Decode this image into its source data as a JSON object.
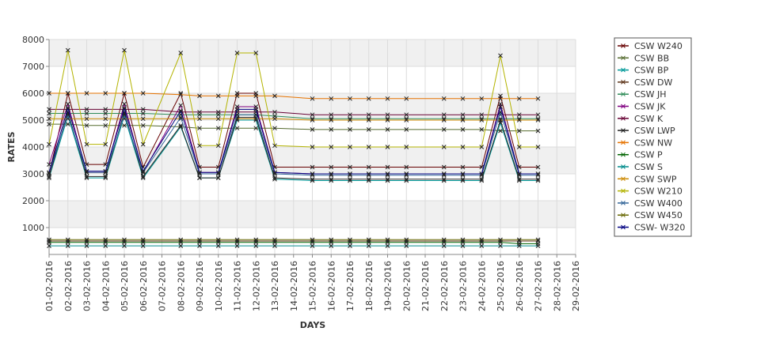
{
  "chart_data": {
    "type": "line",
    "xlabel": "DAYS",
    "ylabel": "RATES",
    "ylim": [
      0,
      8000
    ],
    "yticks": [
      1000,
      2000,
      3000,
      4000,
      5000,
      6000,
      7000,
      8000
    ],
    "grid": "alternating horizontal bands + vertical gridlines",
    "legend_position": "right",
    "categories": [
      "01-02-2016",
      "02-02-2016",
      "03-02-2016",
      "04-02-2016",
      "05-02-2016",
      "06-02-2016",
      "07-02-2016",
      "08-02-2016",
      "09-02-2016",
      "10-02-2016",
      "11-02-2016",
      "12-02-2016",
      "13-02-2016",
      "14-02-2016",
      "15-02-2016",
      "16-02-2016",
      "17-02-2016",
      "18-02-2016",
      "19-02-2016",
      "20-02-2016",
      "21-02-2016",
      "22-02-2016",
      "23-02-2016",
      "24-02-2016",
      "25-02-2016",
      "26-02-2016",
      "27-02-2016",
      "28-02-2016",
      "29-02-2016"
    ],
    "series": [
      {
        "name": "CSW  W240",
        "color": "#660000",
        "values": [
          3000,
          6000,
          3350,
          3350,
          6000,
          3250,
          null,
          6000,
          3250,
          3250,
          6000,
          6000,
          3250,
          null,
          3250,
          3250,
          3250,
          3250,
          3250,
          3250,
          null,
          3250,
          3250,
          3250,
          5900,
          3250,
          3250,
          null,
          null
        ]
      },
      {
        "name": "CSW BB",
        "color": "#556b2f",
        "values": [
          4850,
          4850,
          4800,
          4800,
          4800,
          4800,
          null,
          4750,
          4700,
          4700,
          4700,
          4700,
          4700,
          null,
          4650,
          4650,
          4650,
          4650,
          4650,
          4650,
          null,
          4650,
          4650,
          4650,
          4600,
          4600,
          4600,
          null,
          null
        ]
      },
      {
        "name": "CSW BP",
        "color": "#009999",
        "values": [
          2850,
          5150,
          2850,
          2850,
          5150,
          2850,
          null,
          4750,
          2850,
          2850,
          5000,
          5000,
          2800,
          null,
          2750,
          2750,
          2750,
          2750,
          2750,
          2750,
          null,
          2750,
          2750,
          2750,
          4900,
          2750,
          2750,
          null,
          null
        ]
      },
      {
        "name": "CSW DW",
        "color": "#5c3317",
        "values": [
          500,
          500,
          500,
          500,
          500,
          500,
          null,
          500,
          500,
          500,
          500,
          500,
          500,
          null,
          500,
          500,
          500,
          500,
          500,
          500,
          null,
          500,
          500,
          500,
          500,
          500,
          500,
          null,
          null
        ]
      },
      {
        "name": "CSW JH",
        "color": "#2e8b57",
        "values": [
          5250,
          5250,
          5250,
          5250,
          5250,
          5250,
          null,
          5200,
          5200,
          5200,
          5200,
          5200,
          5150,
          null,
          5050,
          5050,
          5050,
          5050,
          5050,
          5050,
          null,
          5050,
          5050,
          5050,
          5050,
          5050,
          5050,
          null,
          null
        ]
      },
      {
        "name": "CSW JK",
        "color": "#800080",
        "values": [
          3350,
          5600,
          3050,
          3050,
          5600,
          3050,
          null,
          5550,
          3050,
          3050,
          5500,
          5500,
          3050,
          null,
          3000,
          3000,
          3000,
          3000,
          3000,
          3000,
          null,
          3000,
          3000,
          3000,
          5600,
          3000,
          3000,
          null,
          null
        ]
      },
      {
        "name": "CSW K",
        "color": "#660033",
        "values": [
          5400,
          5400,
          5400,
          5400,
          5400,
          5400,
          null,
          5300,
          5300,
          5300,
          5300,
          5300,
          5300,
          null,
          5200,
          5200,
          5200,
          5200,
          5200,
          5200,
          null,
          5200,
          5200,
          5200,
          5200,
          5200,
          5200,
          null,
          null
        ]
      },
      {
        "name": "CSW LWP",
        "color": "#222222",
        "values": [
          2900,
          5300,
          2900,
          2900,
          5300,
          2900,
          null,
          4800,
          2850,
          2850,
          5100,
          5100,
          2850,
          null,
          2800,
          2800,
          2800,
          2800,
          2800,
          2800,
          null,
          2800,
          2800,
          2800,
          5000,
          2800,
          2800,
          null,
          null
        ]
      },
      {
        "name": "CSW NW",
        "color": "#e67300",
        "values": [
          6000,
          6000,
          6000,
          6000,
          6000,
          6000,
          null,
          5950,
          5900,
          5900,
          5900,
          5900,
          5900,
          null,
          5800,
          5800,
          5800,
          5800,
          5800,
          5800,
          null,
          5800,
          5800,
          5800,
          5800,
          5800,
          5800,
          null,
          null
        ]
      },
      {
        "name": "CSW P",
        "color": "#006400",
        "values": [
          450,
          450,
          450,
          450,
          450,
          450,
          null,
          450,
          450,
          450,
          450,
          450,
          450,
          null,
          450,
          450,
          450,
          450,
          450,
          450,
          null,
          450,
          450,
          450,
          450,
          400,
          400,
          null,
          null
        ]
      },
      {
        "name": "CSW S",
        "color": "#008b8b",
        "values": [
          320,
          320,
          320,
          320,
          320,
          320,
          null,
          320,
          320,
          320,
          320,
          320,
          320,
          null,
          320,
          320,
          320,
          320,
          320,
          320,
          null,
          320,
          320,
          320,
          320,
          320,
          320,
          null,
          null
        ]
      },
      {
        "name": "CSW SWP",
        "color": "#cc8800",
        "values": [
          5050,
          5050,
          5050,
          5050,
          5050,
          5050,
          null,
          5050,
          5050,
          5050,
          5050,
          5050,
          5050,
          null,
          5000,
          5000,
          5000,
          5000,
          5000,
          5000,
          null,
          5000,
          5000,
          5000,
          5000,
          5000,
          5000,
          null,
          null
        ]
      },
      {
        "name": "CSW W210",
        "color": "#b3b300",
        "values": [
          4100,
          7600,
          4100,
          4100,
          7600,
          4100,
          null,
          7500,
          4050,
          4050,
          7500,
          7500,
          4050,
          null,
          4000,
          4000,
          4000,
          4000,
          4000,
          4000,
          null,
          4000,
          4000,
          4000,
          7400,
          4000,
          4000,
          null,
          null
        ]
      },
      {
        "name": "CSW W400",
        "color": "#336699",
        "values": [
          3050,
          5200,
          3050,
          3050,
          5200,
          3050,
          null,
          5100,
          3000,
          3000,
          5200,
          5200,
          3000,
          null,
          2950,
          2950,
          2950,
          2950,
          2950,
          2950,
          null,
          2950,
          2950,
          2950,
          5300,
          2950,
          2950,
          null,
          null
        ]
      },
      {
        "name": "CSW W450",
        "color": "#666600",
        "values": [
          550,
          550,
          550,
          550,
          550,
          550,
          null,
          550,
          550,
          550,
          550,
          550,
          550,
          null,
          550,
          550,
          550,
          550,
          550,
          550,
          null,
          550,
          550,
          550,
          550,
          550,
          550,
          null,
          null
        ]
      },
      {
        "name": "CSW- W320",
        "color": "#000080",
        "values": [
          3050,
          5450,
          3100,
          3100,
          5450,
          3100,
          null,
          5350,
          3050,
          3050,
          5400,
          5400,
          3050,
          null,
          3000,
          3000,
          3000,
          3000,
          3000,
          3000,
          null,
          3000,
          3000,
          3000,
          5500,
          3000,
          3000,
          null,
          null
        ]
      }
    ]
  }
}
